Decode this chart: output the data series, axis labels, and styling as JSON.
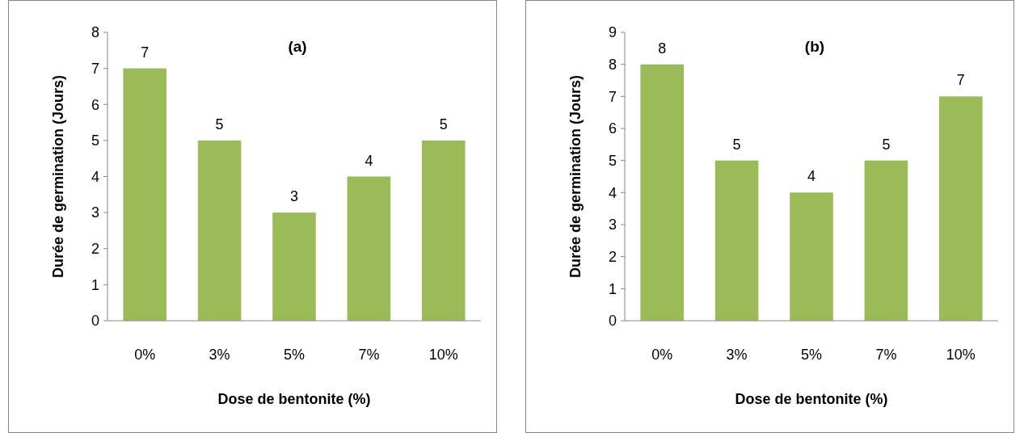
{
  "chart_data": [
    {
      "type": "bar",
      "title": "(a)",
      "xlabel": "Dose de bentonite (%)",
      "ylabel": "Durée de germination (Jours)",
      "categories": [
        "0%",
        "3%",
        "5%",
        "7%",
        "10%"
      ],
      "values": [
        7,
        5,
        3,
        4,
        5
      ],
      "color": "#9bbb59",
      "ylim": [
        0,
        8
      ],
      "yticks": [
        0,
        1,
        2,
        3,
        4,
        5,
        6,
        7,
        8
      ],
      "data_labels": true,
      "grid": false
    },
    {
      "type": "bar",
      "title": "(b)",
      "xlabel": "Dose de bentonite (%)",
      "ylabel": "Durée de germination (Jours)",
      "categories": [
        "0%",
        "3%",
        "5%",
        "7%",
        "10%"
      ],
      "values": [
        8,
        5,
        4,
        5,
        7
      ],
      "color": "#9bbb59",
      "ylim": [
        0,
        9
      ],
      "yticks": [
        0,
        1,
        2,
        3,
        4,
        5,
        6,
        7,
        8,
        9
      ],
      "data_labels": true,
      "grid": false
    }
  ]
}
